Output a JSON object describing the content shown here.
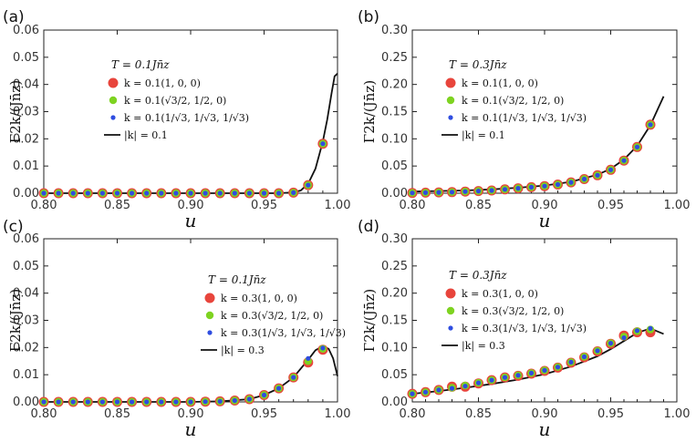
{
  "chart_data": [
    {
      "type": "scatter",
      "panel_label": "(a)",
      "xlabel": "u",
      "ylabel": "Γ2k/(Jn̄z)",
      "xlim": [
        0.8,
        1.0
      ],
      "ylim": [
        0,
        0.06
      ],
      "xticks": [
        "0.80",
        "0.85",
        "0.90",
        "0.95",
        "1.00"
      ],
      "yticks": [
        "0.00",
        "0.01",
        "0.02",
        "0.03",
        "0.04",
        "0.05",
        "0.06"
      ],
      "legend_title": "T = 0.1Jn̄z",
      "legend": [
        "k = 0.1(1, 0, 0)",
        "k = 0.1(√3/2, 1/2, 0)",
        "k = 0.1(1/√3, 1/√3, 1/√3)",
        "|k| = 0.1"
      ],
      "series": [
        {
          "name": "red",
          "color": "#e8453c",
          "x": [
            0.8,
            0.81,
            0.82,
            0.83,
            0.84,
            0.85,
            0.86,
            0.87,
            0.88,
            0.89,
            0.9,
            0.91,
            0.92,
            0.93,
            0.94,
            0.95,
            0.96,
            0.97,
            0.98,
            0.99
          ],
          "y": [
            0,
            0,
            0,
            0,
            0,
            0,
            0,
            0,
            0,
            0,
            0,
            0,
            0,
            0,
            0,
            0,
            0,
            0.0002,
            0.003,
            0.0182
          ]
        },
        {
          "name": "green",
          "color": "#7ed321",
          "x": [
            0.8,
            0.81,
            0.82,
            0.83,
            0.84,
            0.85,
            0.86,
            0.87,
            0.88,
            0.89,
            0.9,
            0.91,
            0.92,
            0.93,
            0.94,
            0.95,
            0.96,
            0.97,
            0.98,
            0.99
          ],
          "y": [
            0,
            0,
            0,
            0,
            0,
            0,
            0,
            0,
            0,
            0,
            0,
            0,
            0,
            0,
            0,
            0,
            0,
            0.0002,
            0.003,
            0.0182
          ]
        },
        {
          "name": "blue",
          "color": "#2f4de0",
          "x": [
            0.8,
            0.81,
            0.82,
            0.83,
            0.84,
            0.85,
            0.86,
            0.87,
            0.88,
            0.89,
            0.9,
            0.91,
            0.92,
            0.93,
            0.94,
            0.95,
            0.96,
            0.97,
            0.98,
            0.99
          ],
          "y": [
            0,
            0,
            0,
            0,
            0,
            0,
            0,
            0,
            0,
            0,
            0,
            0,
            0,
            0,
            0,
            0,
            0,
            0.0002,
            0.003,
            0.0182
          ]
        },
        {
          "name": "line",
          "x": [
            0.8,
            0.9,
            0.95,
            0.96,
            0.97,
            0.975,
            0.98,
            0.985,
            0.99,
            0.993,
            0.996,
            0.998,
            1.0
          ],
          "y": [
            0,
            0,
            0,
            0,
            0.0003,
            0.001,
            0.0035,
            0.009,
            0.019,
            0.027,
            0.037,
            0.043,
            0.044
          ]
        }
      ]
    },
    {
      "type": "scatter",
      "panel_label": "(b)",
      "xlabel": "u",
      "ylabel": "Γ2k/(Jn̄z)",
      "xlim": [
        0.8,
        1.0
      ],
      "ylim": [
        0,
        0.3
      ],
      "xticks": [
        "0.80",
        "0.85",
        "0.90",
        "0.95",
        "1.00"
      ],
      "yticks": [
        "0.00",
        "0.05",
        "0.10",
        "0.15",
        "0.20",
        "0.25",
        "0.30"
      ],
      "legend_title": "T = 0.3Jn̄z",
      "legend": [
        "k = 0.1(1, 0, 0)",
        "k = 0.1(√3/2, 1/2, 0)",
        "k = 0.1(1/√3, 1/√3, 1/√3)",
        "|k| = 0.1"
      ],
      "series": [
        {
          "name": "red",
          "color": "#e8453c",
          "x": [
            0.8,
            0.81,
            0.82,
            0.83,
            0.84,
            0.85,
            0.86,
            0.87,
            0.88,
            0.89,
            0.9,
            0.91,
            0.92,
            0.93,
            0.94,
            0.95,
            0.96,
            0.97,
            0.98
          ],
          "y": [
            0.0005,
            0.001,
            0.0015,
            0.002,
            0.003,
            0.004,
            0.005,
            0.007,
            0.009,
            0.011,
            0.013,
            0.016,
            0.02,
            0.026,
            0.033,
            0.043,
            0.06,
            0.085,
            0.126
          ]
        },
        {
          "name": "green",
          "color": "#7ed321",
          "x": [
            0.8,
            0.81,
            0.82,
            0.83,
            0.84,
            0.85,
            0.86,
            0.87,
            0.88,
            0.89,
            0.9,
            0.91,
            0.92,
            0.93,
            0.94,
            0.95,
            0.96,
            0.97,
            0.98
          ],
          "y": [
            0.0005,
            0.001,
            0.0015,
            0.002,
            0.003,
            0.004,
            0.005,
            0.007,
            0.009,
            0.011,
            0.013,
            0.016,
            0.02,
            0.026,
            0.033,
            0.043,
            0.06,
            0.085,
            0.126
          ]
        },
        {
          "name": "blue",
          "color": "#2f4de0",
          "x": [
            0.8,
            0.81,
            0.82,
            0.83,
            0.84,
            0.85,
            0.86,
            0.87,
            0.88,
            0.89,
            0.9,
            0.91,
            0.92,
            0.93,
            0.94,
            0.95,
            0.96,
            0.97,
            0.98
          ],
          "y": [
            0.0005,
            0.001,
            0.0015,
            0.002,
            0.003,
            0.004,
            0.005,
            0.007,
            0.009,
            0.011,
            0.013,
            0.016,
            0.02,
            0.026,
            0.033,
            0.043,
            0.06,
            0.085,
            0.126
          ]
        },
        {
          "name": "line",
          "x": [
            0.8,
            0.82,
            0.84,
            0.86,
            0.88,
            0.9,
            0.92,
            0.94,
            0.95,
            0.96,
            0.97,
            0.98,
            0.99
          ],
          "y": [
            0.003,
            0.004,
            0.005,
            0.007,
            0.01,
            0.014,
            0.021,
            0.034,
            0.045,
            0.062,
            0.087,
            0.125,
            0.178
          ]
        }
      ]
    },
    {
      "type": "scatter",
      "panel_label": "(c)",
      "xlabel": "u",
      "ylabel": "Γ2k/(Jn̄z)",
      "xlim": [
        0.8,
        1.0
      ],
      "ylim": [
        0,
        0.06
      ],
      "xticks": [
        "0.80",
        "0.85",
        "0.90",
        "0.95",
        "1.00"
      ],
      "yticks": [
        "0.00",
        "0.01",
        "0.02",
        "0.03",
        "0.04",
        "0.05",
        "0.06"
      ],
      "legend_title": "T = 0.1Jn̄z",
      "legend": [
        "k = 0.3(1, 0, 0)",
        "k = 0.3(√3/2, 1/2, 0)",
        "k = 0.3(1/√3, 1/√3, 1/√3)",
        "|k| = 0.3"
      ],
      "series": [
        {
          "name": "red",
          "color": "#e8453c",
          "x": [
            0.8,
            0.81,
            0.82,
            0.83,
            0.84,
            0.85,
            0.86,
            0.87,
            0.88,
            0.89,
            0.9,
            0.91,
            0.92,
            0.93,
            0.94,
            0.95,
            0.96,
            0.97,
            0.98,
            0.99
          ],
          "y": [
            0,
            0,
            0,
            0,
            0,
            0,
            0,
            0,
            0,
            0,
            0,
            0.0001,
            0.0002,
            0.0005,
            0.001,
            0.0025,
            0.005,
            0.009,
            0.0145,
            0.0192
          ]
        },
        {
          "name": "green",
          "color": "#7ed321",
          "x": [
            0.8,
            0.81,
            0.82,
            0.83,
            0.84,
            0.85,
            0.86,
            0.87,
            0.88,
            0.89,
            0.9,
            0.91,
            0.92,
            0.93,
            0.94,
            0.95,
            0.96,
            0.97,
            0.98,
            0.99
          ],
          "y": [
            0,
            0,
            0,
            0,
            0,
            0,
            0,
            0,
            0,
            0,
            0,
            0.0001,
            0.0002,
            0.0005,
            0.001,
            0.0025,
            0.005,
            0.009,
            0.015,
            0.0195
          ]
        },
        {
          "name": "blue",
          "color": "#2f4de0",
          "x": [
            0.8,
            0.81,
            0.82,
            0.83,
            0.84,
            0.85,
            0.86,
            0.87,
            0.88,
            0.89,
            0.9,
            0.91,
            0.92,
            0.93,
            0.94,
            0.95,
            0.96,
            0.97,
            0.98,
            0.99
          ],
          "y": [
            0,
            0,
            0,
            0,
            0,
            0,
            0,
            0,
            0,
            0,
            0,
            0.0001,
            0.0002,
            0.0005,
            0.001,
            0.0025,
            0.005,
            0.009,
            0.016,
            0.0198
          ]
        },
        {
          "name": "line",
          "x": [
            0.8,
            0.9,
            0.92,
            0.94,
            0.95,
            0.96,
            0.97,
            0.98,
            0.985,
            0.99,
            0.994,
            0.997,
            1.0
          ],
          "y": [
            0,
            0,
            0.0002,
            0.001,
            0.0025,
            0.005,
            0.009,
            0.0155,
            0.019,
            0.0205,
            0.0195,
            0.016,
            0.0095
          ]
        }
      ]
    },
    {
      "type": "scatter",
      "panel_label": "(d)",
      "xlabel": "u",
      "ylabel": "Γ2k/(Jn̄z)",
      "xlim": [
        0.8,
        1.0
      ],
      "ylim": [
        0,
        0.3
      ],
      "xticks": [
        "0.80",
        "0.85",
        "0.90",
        "0.95",
        "1.00"
      ],
      "yticks": [
        "0.00",
        "0.05",
        "0.10",
        "0.15",
        "0.20",
        "0.25",
        "0.30"
      ],
      "legend_title": "T = 0.3Jn̄z",
      "legend": [
        "k = 0.3(1, 0, 0)",
        "k = 0.3(√3/2, 1/2, 0)",
        "k = 0.3(1/√3, 1/√3, 1/√3)",
        "|k| = 0.3"
      ],
      "series": [
        {
          "name": "red",
          "color": "#e8453c",
          "x": [
            0.8,
            0.81,
            0.82,
            0.83,
            0.84,
            0.85,
            0.86,
            0.87,
            0.88,
            0.89,
            0.9,
            0.91,
            0.92,
            0.93,
            0.94,
            0.95,
            0.96,
            0.97,
            0.98
          ],
          "y": [
            0.015,
            0.018,
            0.022,
            0.028,
            0.028,
            0.034,
            0.04,
            0.045,
            0.048,
            0.052,
            0.057,
            0.063,
            0.072,
            0.082,
            0.093,
            0.107,
            0.122,
            0.128,
            0.128
          ]
        },
        {
          "name": "green",
          "color": "#7ed321",
          "x": [
            0.8,
            0.81,
            0.82,
            0.83,
            0.84,
            0.85,
            0.86,
            0.87,
            0.88,
            0.89,
            0.9,
            0.91,
            0.92,
            0.93,
            0.94,
            0.95,
            0.96,
            0.97,
            0.98
          ],
          "y": [
            0.015,
            0.018,
            0.022,
            0.026,
            0.03,
            0.035,
            0.04,
            0.045,
            0.049,
            0.053,
            0.058,
            0.064,
            0.073,
            0.083,
            0.094,
            0.108,
            0.12,
            0.13,
            0.133
          ]
        },
        {
          "name": "blue",
          "color": "#2f4de0",
          "x": [
            0.8,
            0.81,
            0.82,
            0.83,
            0.84,
            0.85,
            0.86,
            0.87,
            0.88,
            0.89,
            0.9,
            0.91,
            0.92,
            0.93,
            0.94,
            0.95,
            0.96,
            0.97,
            0.98
          ],
          "y": [
            0.015,
            0.018,
            0.022,
            0.025,
            0.029,
            0.035,
            0.04,
            0.045,
            0.049,
            0.053,
            0.058,
            0.064,
            0.073,
            0.083,
            0.094,
            0.108,
            0.118,
            0.131,
            0.135
          ]
        },
        {
          "name": "line",
          "x": [
            0.8,
            0.82,
            0.84,
            0.86,
            0.88,
            0.9,
            0.92,
            0.94,
            0.95,
            0.96,
            0.97,
            0.98,
            0.99
          ],
          "y": [
            0.015,
            0.02,
            0.026,
            0.033,
            0.041,
            0.051,
            0.065,
            0.084,
            0.097,
            0.112,
            0.127,
            0.135,
            0.125
          ]
        }
      ]
    }
  ]
}
